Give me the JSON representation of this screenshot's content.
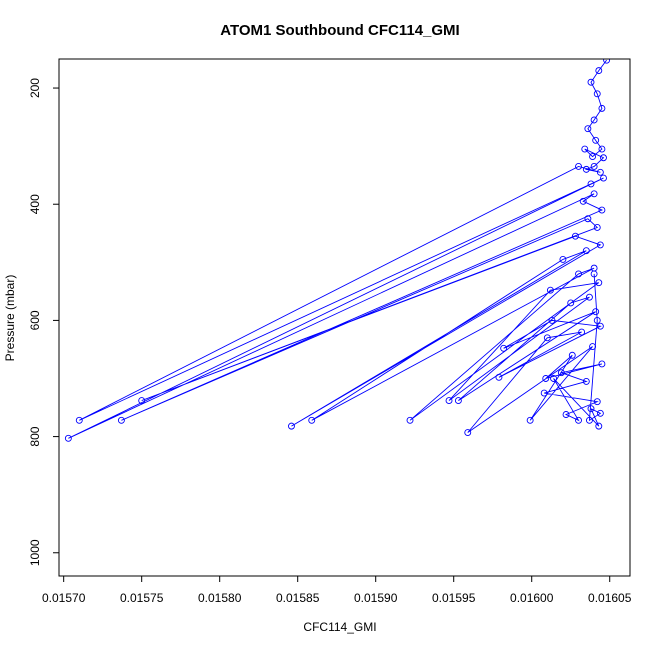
{
  "chart_data": {
    "type": "line",
    "title": "ATOM1 Southbound CFC114_GMI",
    "xlabel": "CFC114_GMI",
    "ylabel": "Pressure (mbar)",
    "xlim": [
      0.015697,
      0.016063
    ],
    "ylim": [
      1040,
      150
    ],
    "y_reversed": true,
    "x_ticks": [
      0.0157,
      0.01575,
      0.0158,
      0.01585,
      0.0159,
      0.01595,
      0.016,
      0.01605
    ],
    "x_tick_labels": [
      "0.01570",
      "0.01575",
      "0.01580",
      "0.01585",
      "0.01590",
      "0.01595",
      "0.01600",
      "0.01605"
    ],
    "y_ticks": [
      200,
      400,
      600,
      800,
      1000
    ],
    "y_tick_labels": [
      "200",
      "400",
      "600",
      "800",
      "1000"
    ],
    "grid": false,
    "series": [
      {
        "color": "#0000ff",
        "marker": "open-circle",
        "x": [
          0.016048,
          0.016043,
          0.016038,
          0.016042,
          0.016045,
          0.01604,
          0.016036,
          0.016041,
          0.016045,
          0.016039,
          0.016034,
          0.016046,
          0.01604,
          0.016035,
          0.016044,
          0.01603,
          0.01571,
          0.016038,
          0.016046,
          0.015703,
          0.01604,
          0.016033,
          0.016045,
          0.015737,
          0.016036,
          0.016042,
          0.01575,
          0.016028,
          0.016044,
          0.015846,
          0.016035,
          0.01602,
          0.015859,
          0.01604,
          0.01603,
          0.015922,
          0.016043,
          0.016012,
          0.015947,
          0.016037,
          0.016025,
          0.015953,
          0.016041,
          0.015982,
          0.016013,
          0.016044,
          0.015979,
          0.016032,
          0.01601,
          0.015959,
          0.016039,
          0.015999,
          0.016026,
          0.016009,
          0.016045,
          0.016019,
          0.016035,
          0.016008,
          0.016042,
          0.016022,
          0.01603,
          0.016014,
          0.016043,
          0.016038,
          0.016044,
          0.016037,
          0.016042,
          0.01604
        ],
        "y": [
          152,
          170,
          190,
          210,
          235,
          255,
          270,
          290,
          305,
          318,
          305,
          320,
          335,
          340,
          345,
          335,
          772,
          365,
          355,
          803,
          382,
          395,
          410,
          772,
          425,
          440,
          738,
          455,
          470,
          782,
          480,
          495,
          772,
          510,
          520,
          772,
          535,
          548,
          738,
          560,
          570,
          738,
          585,
          648,
          600,
          610,
          698,
          620,
          630,
          793,
          645,
          772,
          660,
          700,
          675,
          690,
          705,
          725,
          740,
          762,
          772,
          700,
          782,
          752,
          760,
          772,
          600,
          520
        ]
      }
    ]
  }
}
